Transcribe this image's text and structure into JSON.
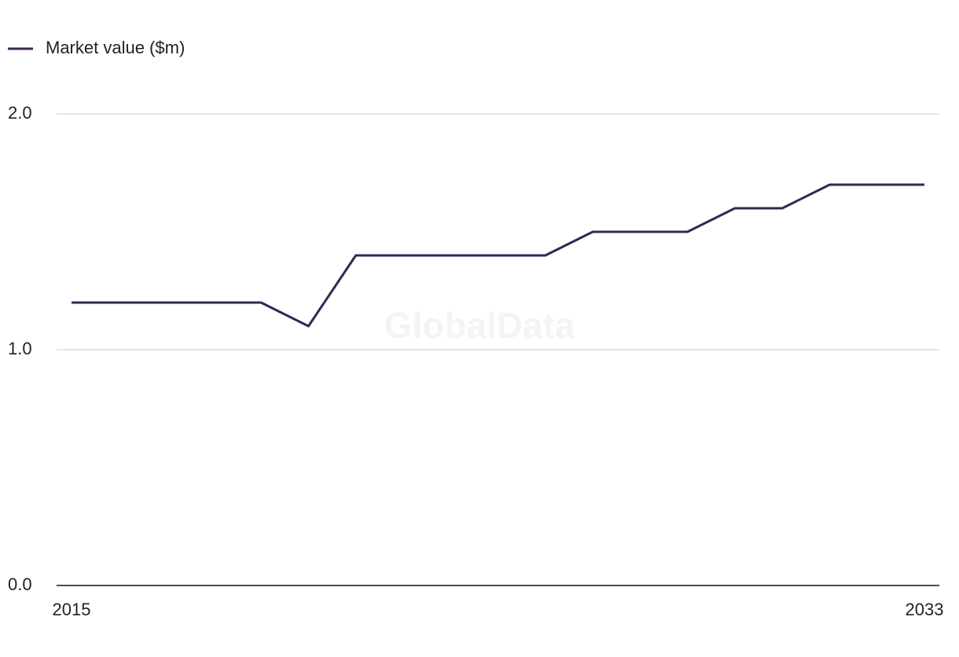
{
  "chart_data": {
    "type": "line",
    "x": [
      2015,
      2016,
      2017,
      2018,
      2019,
      2020,
      2021,
      2022,
      2023,
      2024,
      2025,
      2026,
      2027,
      2028,
      2029,
      2030,
      2031,
      2032,
      2033
    ],
    "series": [
      {
        "name": "Market value ($m)",
        "color": "#3a2553",
        "values": [
          1.2,
          1.2,
          1.2,
          1.2,
          1.2,
          1.1,
          1.4,
          1.4,
          1.4,
          1.4,
          1.4,
          1.5,
          1.5,
          1.5,
          1.6,
          1.6,
          1.7,
          1.7,
          1.7
        ]
      }
    ],
    "xlim": [
      2015,
      2033
    ],
    "xticks": [
      2015,
      2033
    ],
    "ylim": [
      0,
      2
    ],
    "yticks": [
      {
        "value": 0,
        "label": "0.0"
      },
      {
        "value": 1,
        "label": "1.0"
      },
      {
        "value": 2,
        "label": "2.0"
      }
    ],
    "grid": true,
    "legend": "top-left",
    "watermark": "GlobalData"
  }
}
